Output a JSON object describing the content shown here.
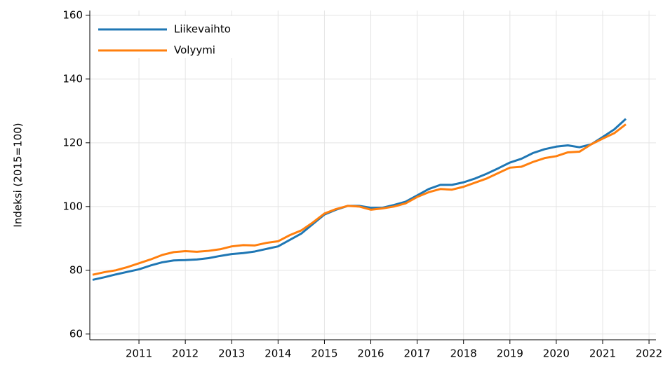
{
  "chart_data": {
    "type": "line",
    "y_label": "Indeksi (2015=100)",
    "x": [
      2010.0,
      2010.25,
      2010.5,
      2010.75,
      2011.0,
      2011.25,
      2011.5,
      2011.75,
      2012.0,
      2012.25,
      2012.5,
      2012.75,
      2013.0,
      2013.25,
      2013.5,
      2013.75,
      2014.0,
      2014.25,
      2014.5,
      2014.75,
      2015.0,
      2015.25,
      2015.5,
      2015.75,
      2016.0,
      2016.25,
      2016.5,
      2016.75,
      2017.0,
      2017.25,
      2017.5,
      2017.75,
      2018.0,
      2018.25,
      2018.5,
      2018.75,
      2019.0,
      2019.25,
      2019.5,
      2019.75,
      2020.0,
      2020.25,
      2020.5,
      2020.75,
      2021.0,
      2021.25,
      2021.5
    ],
    "series": [
      {
        "name": "Liikevaihto",
        "color": "#1f77b4",
        "values": [
          77,
          77.8,
          78.7,
          79.5,
          80.3,
          81.5,
          82.5,
          83.1,
          83.2,
          83.4,
          83.8,
          84.5,
          85.1,
          85.4,
          85.9,
          86.7,
          87.5,
          89.5,
          91.5,
          94.5,
          97.5,
          99.0,
          100.2,
          100.2,
          99.6,
          99.6,
          100.5,
          101.5,
          103.5,
          105.5,
          106.8,
          106.8,
          107.6,
          108.8,
          110.3,
          112.0,
          113.8,
          115.0,
          116.8,
          118.0,
          118.8,
          119.2,
          118.6,
          119.5,
          121.8,
          124.2,
          127.5
        ]
      },
      {
        "name": "Volyymi",
        "color": "#ff7f0e",
        "values": [
          78.6,
          79.4,
          80.0,
          81.0,
          82.2,
          83.4,
          84.8,
          85.7,
          86.0,
          85.8,
          86.1,
          86.6,
          87.5,
          87.9,
          87.8,
          88.6,
          89.1,
          91.0,
          92.5,
          95.0,
          97.8,
          99.2,
          100.2,
          100.0,
          99.0,
          99.4,
          100.0,
          101.0,
          103.0,
          104.5,
          105.5,
          105.3,
          106.2,
          107.5,
          108.8,
          110.5,
          112.2,
          112.5,
          114.0,
          115.2,
          115.8,
          117.0,
          117.2,
          119.5,
          121.3,
          123.0,
          125.8
        ]
      }
    ],
    "xlim": [
      2009.94,
      2022.15
    ],
    "xticks": [
      2011,
      2012,
      2013,
      2014,
      2015,
      2016,
      2017,
      2018,
      2019,
      2020,
      2021,
      2022
    ],
    "ylim": [
      58.2,
      161.5
    ],
    "yticks": [
      60,
      80,
      100,
      120,
      140,
      160
    ],
    "grid": true,
    "legend": "upper-left"
  }
}
